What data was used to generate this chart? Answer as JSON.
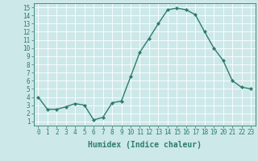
{
  "x": [
    0,
    1,
    2,
    3,
    4,
    5,
    6,
    7,
    8,
    9,
    10,
    11,
    12,
    13,
    14,
    15,
    16,
    17,
    18,
    19,
    20,
    21,
    22,
    23
  ],
  "y": [
    4.0,
    2.5,
    2.5,
    2.8,
    3.2,
    3.0,
    1.2,
    1.5,
    3.3,
    3.5,
    6.5,
    9.5,
    11.2,
    13.0,
    14.7,
    14.9,
    14.7,
    14.1,
    12.0,
    10.0,
    8.5,
    6.0,
    5.2,
    5.0
  ],
  "line_color": "#2d7d6f",
  "marker": "D",
  "marker_size": 2.0,
  "bg_color": "#cde8e8",
  "grid_color": "#ffffff",
  "axis_color": "#2d7d6f",
  "xlabel": "Humidex (Indice chaleur)",
  "xlim": [
    -0.5,
    23.5
  ],
  "ylim": [
    0.5,
    15.5
  ],
  "yticks": [
    1,
    2,
    3,
    4,
    5,
    6,
    7,
    8,
    9,
    10,
    11,
    12,
    13,
    14,
    15
  ],
  "xticks": [
    0,
    1,
    2,
    3,
    4,
    5,
    6,
    7,
    8,
    9,
    10,
    11,
    12,
    13,
    14,
    15,
    16,
    17,
    18,
    19,
    20,
    21,
    22,
    23
  ],
  "tick_fontsize": 5.5,
  "xlabel_fontsize": 7.0,
  "line_width": 1.0
}
